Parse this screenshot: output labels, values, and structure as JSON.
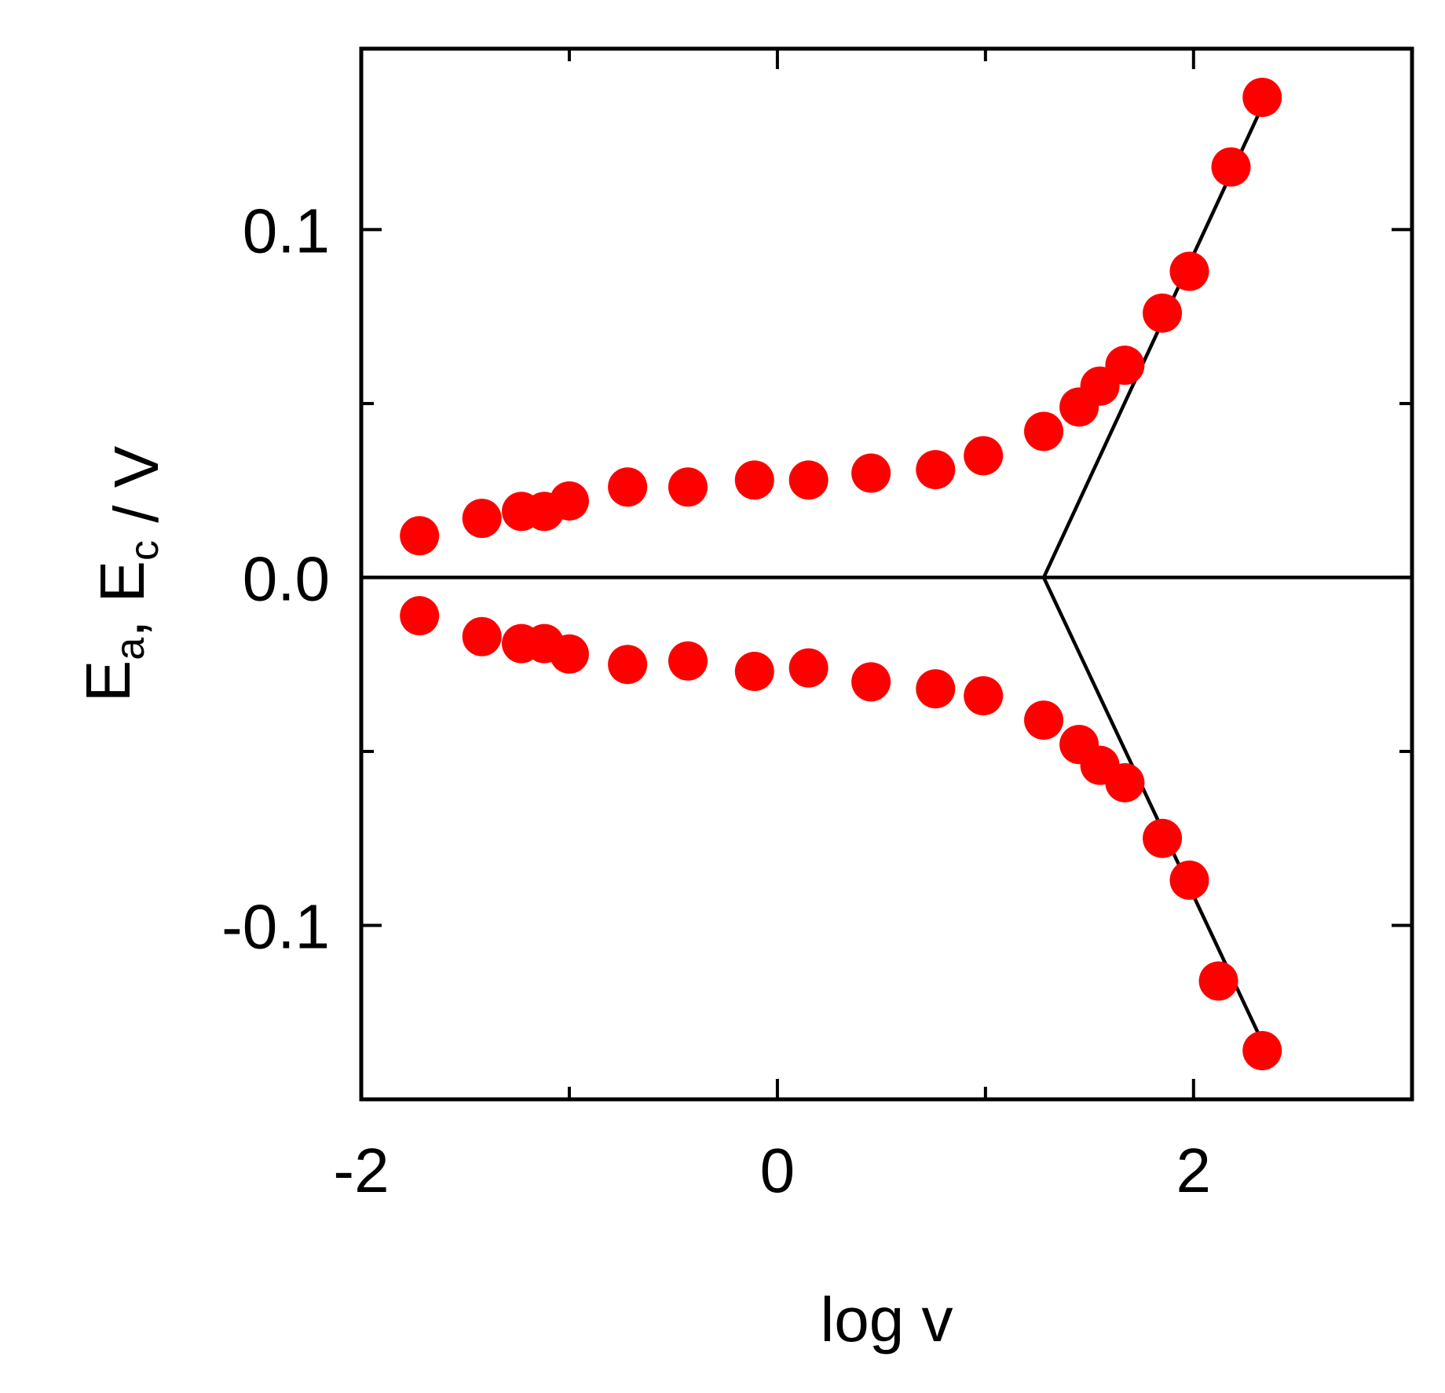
{
  "chart_data": {
    "type": "scatter",
    "xlabel": "log v",
    "ylabel": {
      "parts": [
        {
          "text": "E",
          "sub": "a"
        },
        {
          "text": ", E",
          "sub": "c"
        },
        {
          "text": " / V",
          "sub": ""
        }
      ]
    },
    "xlim": [
      -2.0,
      3.05
    ],
    "ylim": [
      -0.15,
      0.152
    ],
    "xticks": [
      -2,
      0,
      2
    ],
    "xtick_labels": [
      "-2",
      "0",
      "2"
    ],
    "yticks": [
      -0.1,
      0.0,
      0.1
    ],
    "ytick_labels": [
      "-0.1",
      "0.0",
      "0.1"
    ],
    "y_minor_ticks": [
      -0.05,
      0.05
    ],
    "x_minor_ticks": [
      -1,
      1
    ],
    "grid": false,
    "legend": "none",
    "marker_color": "#ff0000",
    "line_color": "#000000",
    "series": [
      {
        "kind": "points",
        "points": [
          [
            -1.72,
            0.012
          ],
          [
            -1.42,
            0.017
          ],
          [
            -1.23,
            0.019
          ],
          [
            -1.12,
            0.019
          ],
          [
            -1.0,
            0.022
          ],
          [
            -0.72,
            0.026
          ],
          [
            -0.43,
            0.026
          ],
          [
            -0.11,
            0.028
          ],
          [
            0.15,
            0.028
          ],
          [
            0.45,
            0.03
          ],
          [
            0.76,
            0.031
          ],
          [
            0.99,
            0.035
          ],
          [
            1.28,
            0.042
          ],
          [
            1.45,
            0.049
          ],
          [
            1.55,
            0.055
          ],
          [
            1.67,
            0.061
          ],
          [
            1.85,
            0.076
          ],
          [
            1.98,
            0.088
          ],
          [
            2.18,
            0.118
          ],
          [
            2.33,
            0.138
          ]
        ]
      },
      {
        "kind": "points",
        "points": [
          [
            -1.72,
            -0.011
          ],
          [
            -1.42,
            -0.017
          ],
          [
            -1.23,
            -0.019
          ],
          [
            -1.12,
            -0.019
          ],
          [
            -1.0,
            -0.022
          ],
          [
            -0.72,
            -0.025
          ],
          [
            -0.43,
            -0.024
          ],
          [
            -0.11,
            -0.027
          ],
          [
            0.15,
            -0.026
          ],
          [
            0.45,
            -0.03
          ],
          [
            0.76,
            -0.032
          ],
          [
            0.99,
            -0.034
          ],
          [
            1.28,
            -0.041
          ],
          [
            1.45,
            -0.048
          ],
          [
            1.55,
            -0.054
          ],
          [
            1.67,
            -0.059
          ],
          [
            1.85,
            -0.075
          ],
          [
            1.98,
            -0.087
          ],
          [
            2.12,
            -0.116
          ],
          [
            2.33,
            -0.136
          ]
        ]
      },
      {
        "kind": "line",
        "points": [
          [
            -2.0,
            0.0
          ],
          [
            3.05,
            0.0
          ]
        ]
      },
      {
        "kind": "line",
        "points": [
          [
            1.28,
            0.0
          ],
          [
            2.35,
            0.138
          ]
        ]
      },
      {
        "kind": "line",
        "points": [
          [
            1.28,
            0.0
          ],
          [
            2.35,
            -0.136
          ]
        ]
      }
    ]
  }
}
